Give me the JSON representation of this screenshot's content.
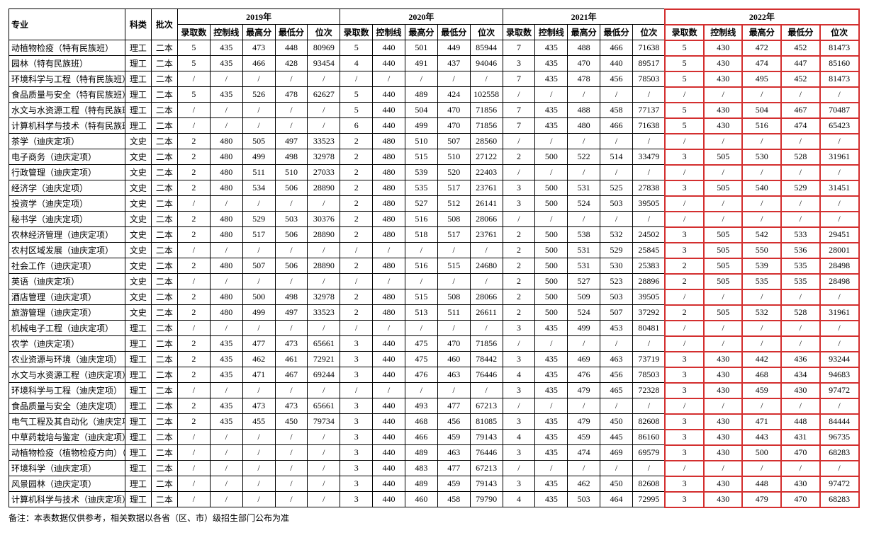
{
  "headers": {
    "major": "专业",
    "cat": "科类",
    "batch": "批次",
    "years": [
      "2019年",
      "2020年",
      "2021年",
      "2022年"
    ],
    "sub": [
      "录取数",
      "控制线",
      "最高分",
      "最低分",
      "位次"
    ]
  },
  "note": "备注：本表数据仅供参考，相关数据以各省（区、市）级招生部门公布为准",
  "highlight_year_index": 3,
  "rows": [
    {
      "m": "动植物检疫（特有民族班）",
      "c": "理工",
      "b": "二本",
      "y": [
        [
          "5",
          "435",
          "473",
          "448",
          "80969"
        ],
        [
          "5",
          "440",
          "501",
          "449",
          "85944"
        ],
        [
          "7",
          "435",
          "488",
          "466",
          "71638"
        ],
        [
          "5",
          "430",
          "472",
          "452",
          "81473"
        ]
      ]
    },
    {
      "m": "园林（特有民族班）",
      "c": "理工",
      "b": "二本",
      "y": [
        [
          "5",
          "435",
          "466",
          "428",
          "93454"
        ],
        [
          "4",
          "440",
          "491",
          "437",
          "94046"
        ],
        [
          "3",
          "435",
          "470",
          "440",
          "89517"
        ],
        [
          "5",
          "430",
          "474",
          "447",
          "85160"
        ]
      ]
    },
    {
      "m": "环境科学与工程（特有民族班）",
      "c": "理工",
      "b": "二本",
      "y": [
        [
          "/",
          "/",
          "/",
          "/",
          "/"
        ],
        [
          "/",
          "/",
          "/",
          "/",
          "/"
        ],
        [
          "7",
          "435",
          "478",
          "456",
          "78503"
        ],
        [
          "5",
          "430",
          "495",
          "452",
          "81473"
        ]
      ]
    },
    {
      "m": "食品质量与安全（特有民族班）",
      "c": "理工",
      "b": "二本",
      "y": [
        [
          "5",
          "435",
          "526",
          "478",
          "62627"
        ],
        [
          "5",
          "440",
          "489",
          "424",
          "102558"
        ],
        [
          "/",
          "/",
          "/",
          "/",
          "/"
        ],
        [
          "/",
          "/",
          "/",
          "/",
          "/"
        ]
      ]
    },
    {
      "m": "水文与水资源工程（特有民族班）",
      "c": "理工",
      "b": "二本",
      "y": [
        [
          "/",
          "/",
          "/",
          "/",
          "/"
        ],
        [
          "5",
          "440",
          "504",
          "470",
          "71856"
        ],
        [
          "7",
          "435",
          "488",
          "458",
          "77137"
        ],
        [
          "5",
          "430",
          "504",
          "467",
          "70487"
        ]
      ]
    },
    {
      "m": "计算机科学与技术（特有民族班）",
      "c": "理工",
      "b": "二本",
      "y": [
        [
          "/",
          "/",
          "/",
          "/",
          "/"
        ],
        [
          "6",
          "440",
          "499",
          "470",
          "71856"
        ],
        [
          "7",
          "435",
          "480",
          "466",
          "71638"
        ],
        [
          "5",
          "430",
          "516",
          "474",
          "65423"
        ]
      ]
    },
    {
      "m": "茶学（迪庆定项）",
      "c": "文史",
      "b": "二本",
      "y": [
        [
          "2",
          "480",
          "505",
          "497",
          "33523"
        ],
        [
          "2",
          "480",
          "510",
          "507",
          "28560"
        ],
        [
          "/",
          "/",
          "/",
          "/",
          "/"
        ],
        [
          "/",
          "/",
          "/",
          "/",
          "/"
        ]
      ]
    },
    {
      "m": "电子商务（迪庆定项）",
      "c": "文史",
      "b": "二本",
      "y": [
        [
          "2",
          "480",
          "499",
          "498",
          "32978"
        ],
        [
          "2",
          "480",
          "515",
          "510",
          "27122"
        ],
        [
          "2",
          "500",
          "522",
          "514",
          "33479"
        ],
        [
          "3",
          "505",
          "530",
          "528",
          "31961"
        ]
      ]
    },
    {
      "m": "行政管理（迪庆定项）",
      "c": "文史",
      "b": "二本",
      "y": [
        [
          "2",
          "480",
          "511",
          "510",
          "27033"
        ],
        [
          "2",
          "480",
          "539",
          "520",
          "22403"
        ],
        [
          "/",
          "/",
          "/",
          "/",
          "/"
        ],
        [
          "/",
          "/",
          "/",
          "/",
          "/"
        ]
      ]
    },
    {
      "m": "经济学（迪庆定项）",
      "c": "文史",
      "b": "二本",
      "y": [
        [
          "2",
          "480",
          "534",
          "506",
          "28890"
        ],
        [
          "2",
          "480",
          "535",
          "517",
          "23761"
        ],
        [
          "3",
          "500",
          "531",
          "525",
          "27838"
        ],
        [
          "3",
          "505",
          "540",
          "529",
          "31451"
        ]
      ]
    },
    {
      "m": "投资学（迪庆定项）",
      "c": "文史",
      "b": "二本",
      "y": [
        [
          "/",
          "/",
          "/",
          "/",
          "/"
        ],
        [
          "2",
          "480",
          "527",
          "512",
          "26141"
        ],
        [
          "3",
          "500",
          "524",
          "503",
          "39505"
        ],
        [
          "/",
          "/",
          "/",
          "/",
          "/"
        ]
      ]
    },
    {
      "m": "秘书学（迪庆定项）",
      "c": "文史",
      "b": "二本",
      "y": [
        [
          "2",
          "480",
          "529",
          "503",
          "30376"
        ],
        [
          "2",
          "480",
          "516",
          "508",
          "28066"
        ],
        [
          "/",
          "/",
          "/",
          "/",
          "/"
        ],
        [
          "/",
          "/",
          "/",
          "/",
          "/"
        ]
      ]
    },
    {
      "m": "农林经济管理（迪庆定项）",
      "c": "文史",
      "b": "二本",
      "y": [
        [
          "2",
          "480",
          "517",
          "506",
          "28890"
        ],
        [
          "2",
          "480",
          "518",
          "517",
          "23761"
        ],
        [
          "2",
          "500",
          "538",
          "532",
          "24502"
        ],
        [
          "3",
          "505",
          "542",
          "533",
          "29451"
        ]
      ]
    },
    {
      "m": "农村区域发展（迪庆定项）",
      "c": "文史",
      "b": "二本",
      "y": [
        [
          "/",
          "/",
          "/",
          "/",
          "/"
        ],
        [
          "/",
          "/",
          "/",
          "/",
          "/"
        ],
        [
          "2",
          "500",
          "531",
          "529",
          "25845"
        ],
        [
          "3",
          "505",
          "550",
          "536",
          "28001"
        ]
      ]
    },
    {
      "m": "社会工作（迪庆定项）",
      "c": "文史",
      "b": "二本",
      "y": [
        [
          "2",
          "480",
          "507",
          "506",
          "28890"
        ],
        [
          "2",
          "480",
          "516",
          "515",
          "24680"
        ],
        [
          "2",
          "500",
          "531",
          "530",
          "25383"
        ],
        [
          "2",
          "505",
          "539",
          "535",
          "28498"
        ]
      ]
    },
    {
      "m": "英语（迪庆定项）",
      "c": "文史",
      "b": "二本",
      "y": [
        [
          "/",
          "/",
          "/",
          "/",
          "/"
        ],
        [
          "/",
          "/",
          "/",
          "/",
          "/"
        ],
        [
          "2",
          "500",
          "527",
          "523",
          "28896"
        ],
        [
          "2",
          "505",
          "535",
          "535",
          "28498"
        ]
      ]
    },
    {
      "m": "酒店管理（迪庆定项）",
      "c": "文史",
      "b": "二本",
      "y": [
        [
          "2",
          "480",
          "500",
          "498",
          "32978"
        ],
        [
          "2",
          "480",
          "515",
          "508",
          "28066"
        ],
        [
          "2",
          "500",
          "509",
          "503",
          "39505"
        ],
        [
          "/",
          "/",
          "/",
          "/",
          "/"
        ]
      ]
    },
    {
      "m": "旅游管理（迪庆定项）",
      "c": "文史",
      "b": "二本",
      "y": [
        [
          "2",
          "480",
          "499",
          "497",
          "33523"
        ],
        [
          "2",
          "480",
          "513",
          "511",
          "26611"
        ],
        [
          "2",
          "500",
          "524",
          "507",
          "37292"
        ],
        [
          "2",
          "505",
          "532",
          "528",
          "31961"
        ]
      ]
    },
    {
      "m": "机械电子工程（迪庆定项）",
      "c": "理工",
      "b": "二本",
      "y": [
        [
          "/",
          "/",
          "/",
          "/",
          "/"
        ],
        [
          "/",
          "/",
          "/",
          "/",
          "/"
        ],
        [
          "3",
          "435",
          "499",
          "453",
          "80481"
        ],
        [
          "/",
          "/",
          "/",
          "/",
          "/"
        ]
      ]
    },
    {
      "m": "农学（迪庆定项）",
      "c": "理工",
      "b": "二本",
      "y": [
        [
          "2",
          "435",
          "477",
          "473",
          "65661"
        ],
        [
          "3",
          "440",
          "475",
          "470",
          "71856"
        ],
        [
          "/",
          "/",
          "/",
          "/",
          "/"
        ],
        [
          "/",
          "/",
          "/",
          "/",
          "/"
        ]
      ]
    },
    {
      "m": "农业资源与环境（迪庆定项）",
      "c": "理工",
      "b": "二本",
      "y": [
        [
          "2",
          "435",
          "462",
          "461",
          "72921"
        ],
        [
          "3",
          "440",
          "475",
          "460",
          "78442"
        ],
        [
          "3",
          "435",
          "469",
          "463",
          "73719"
        ],
        [
          "3",
          "430",
          "442",
          "436",
          "93244"
        ]
      ]
    },
    {
      "m": "水文与水资源工程（迪庆定项）",
      "c": "理工",
      "b": "二本",
      "y": [
        [
          "2",
          "435",
          "471",
          "467",
          "69244"
        ],
        [
          "3",
          "440",
          "476",
          "463",
          "76446"
        ],
        [
          "4",
          "435",
          "476",
          "456",
          "78503"
        ],
        [
          "3",
          "430",
          "468",
          "434",
          "94683"
        ]
      ]
    },
    {
      "m": "环境科学与工程（迪庆定项）",
      "c": "理工",
      "b": "二本",
      "y": [
        [
          "/",
          "/",
          "/",
          "/",
          "/"
        ],
        [
          "/",
          "/",
          "/",
          "/",
          "/"
        ],
        [
          "3",
          "435",
          "479",
          "465",
          "72328"
        ],
        [
          "3",
          "430",
          "459",
          "430",
          "97472"
        ]
      ]
    },
    {
      "m": "食品质量与安全（迪庆定项）",
      "c": "理工",
      "b": "二本",
      "y": [
        [
          "2",
          "435",
          "473",
          "473",
          "65661"
        ],
        [
          "3",
          "440",
          "493",
          "477",
          "67213"
        ],
        [
          "/",
          "/",
          "/",
          "/",
          "/"
        ],
        [
          "/",
          "/",
          "/",
          "/",
          "/"
        ]
      ]
    },
    {
      "m": "电气工程及其自动化（迪庆定项）",
      "c": "理工",
      "b": "二本",
      "y": [
        [
          "2",
          "435",
          "455",
          "450",
          "79734"
        ],
        [
          "3",
          "440",
          "468",
          "456",
          "81085"
        ],
        [
          "3",
          "435",
          "479",
          "450",
          "82608"
        ],
        [
          "3",
          "430",
          "471",
          "448",
          "84444"
        ]
      ]
    },
    {
      "m": "中草药栽培与鉴定（迪庆定项）",
      "c": "理工",
      "b": "二本",
      "y": [
        [
          "/",
          "/",
          "/",
          "/",
          "/"
        ],
        [
          "3",
          "440",
          "466",
          "459",
          "79143"
        ],
        [
          "4",
          "435",
          "459",
          "445",
          "86160"
        ],
        [
          "3",
          "430",
          "443",
          "431",
          "96735"
        ]
      ]
    },
    {
      "m": "动植物检疫（植物检疫方向）（迪庆定项）",
      "c": "理工",
      "b": "二本",
      "y": [
        [
          "/",
          "/",
          "/",
          "/",
          "/"
        ],
        [
          "3",
          "440",
          "489",
          "463",
          "76446"
        ],
        [
          "3",
          "435",
          "474",
          "469",
          "69579"
        ],
        [
          "3",
          "430",
          "500",
          "470",
          "68283"
        ]
      ]
    },
    {
      "m": "环境科学（迪庆定项）",
      "c": "理工",
      "b": "二本",
      "y": [
        [
          "/",
          "/",
          "/",
          "/",
          "/"
        ],
        [
          "3",
          "440",
          "483",
          "477",
          "67213"
        ],
        [
          "/",
          "/",
          "/",
          "/",
          "/"
        ],
        [
          "/",
          "/",
          "/",
          "/",
          "/"
        ]
      ]
    },
    {
      "m": "风景园林（迪庆定项）",
      "c": "理工",
      "b": "二本",
      "y": [
        [
          "/",
          "/",
          "/",
          "/",
          "/"
        ],
        [
          "3",
          "440",
          "489",
          "459",
          "79143"
        ],
        [
          "3",
          "435",
          "462",
          "450",
          "82608"
        ],
        [
          "3",
          "430",
          "448",
          "430",
          "97472"
        ]
      ]
    },
    {
      "m": "计算机科学与技术（迪庆定项）",
      "c": "理工",
      "b": "二本",
      "y": [
        [
          "/",
          "/",
          "/",
          "/",
          "/"
        ],
        [
          "3",
          "440",
          "460",
          "458",
          "79790"
        ],
        [
          "4",
          "435",
          "503",
          "464",
          "72995"
        ],
        [
          "3",
          "430",
          "479",
          "470",
          "68283"
        ]
      ]
    }
  ]
}
